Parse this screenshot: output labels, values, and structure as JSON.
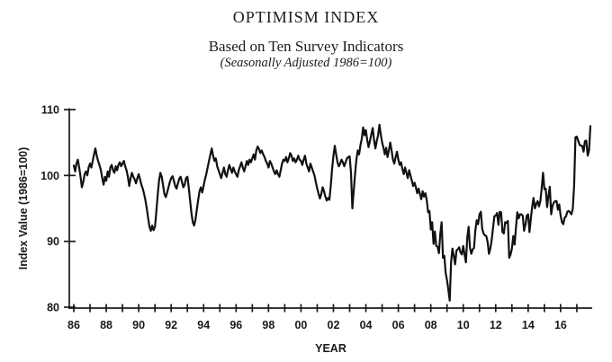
{
  "chart_data": {
    "type": "line",
    "title": "OPTIMISM INDEX",
    "subtitle": "Based on Ten Survey Indicators",
    "subtitle2": "(Seasonally Adjusted 1986=100)",
    "xlabel": "YEAR",
    "ylabel": "Index Value (1986=100)",
    "ylim": [
      80,
      110
    ],
    "y_ticks": [
      80,
      90,
      100,
      110
    ],
    "x_year_range": [
      1986,
      2017
    ],
    "x_tick_labels": [
      "86",
      "88",
      "90",
      "92",
      "94",
      "96",
      "98",
      "00",
      "02",
      "04",
      "06",
      "08",
      "10",
      "12",
      "14",
      "16"
    ],
    "grid": false,
    "legend_position": "none",
    "line_color": "#111111",
    "text_color": "#1a1a1a",
    "series": [
      {
        "start_year": 1986,
        "points_per_year": 12,
        "end_label": "Nov 2017",
        "values": [
          101.5,
          100.6,
          101.8,
          102.4,
          101.2,
          99.8,
          98.2,
          99.0,
          100.2,
          100.6,
          100.0,
          101.2,
          101.8,
          101.2,
          102.2,
          103.2,
          104.1,
          103.0,
          102.2,
          101.6,
          100.8,
          99.6,
          98.6,
          99.8,
          99.2,
          100.6,
          99.8,
          101.2,
          101.6,
          100.8,
          100.4,
          101.4,
          100.8,
          101.6,
          102.0,
          101.4,
          101.8,
          102.2,
          101.4,
          100.8,
          99.8,
          98.4,
          99.6,
          100.4,
          99.8,
          99.4,
          98.8,
          99.6,
          100.2,
          99.4,
          98.6,
          98.0,
          97.2,
          96.2,
          95.0,
          93.5,
          92.2,
          91.6,
          92.4,
          91.7,
          92.2,
          94.5,
          97.0,
          99.2,
          100.4,
          99.8,
          98.5,
          97.2,
          96.7,
          97.4,
          98.2,
          99.0,
          99.6,
          99.9,
          99.2,
          98.4,
          98.0,
          98.8,
          99.5,
          99.8,
          99.0,
          98.2,
          98.6,
          99.6,
          99.8,
          98.2,
          96.2,
          94.3,
          92.9,
          92.4,
          93.3,
          94.8,
          96.3,
          97.6,
          98.2,
          97.4,
          98.4,
          99.4,
          100.2,
          101.2,
          102.2,
          103.2,
          104.1,
          103.0,
          102.2,
          102.6,
          101.4,
          100.8,
          100.2,
          99.6,
          100.4,
          101.2,
          100.2,
          99.8,
          100.8,
          101.6,
          101.0,
          100.4,
          101.2,
          100.6,
          100.2,
          99.8,
          100.8,
          101.4,
          102.0,
          101.2,
          100.6,
          101.4,
          102.2,
          101.6,
          102.4,
          102.0,
          102.6,
          103.2,
          102.4,
          103.8,
          104.4,
          104.0,
          103.4,
          103.8,
          103.2,
          102.8,
          102.2,
          101.8,
          101.2,
          102.2,
          101.8,
          101.2,
          100.6,
          100.2,
          100.8,
          100.2,
          99.8,
          100.8,
          101.8,
          102.4,
          102.2,
          102.8,
          102.0,
          102.6,
          103.4,
          103.0,
          102.2,
          102.6,
          102.0,
          102.4,
          103.0,
          102.4,
          102.2,
          101.6,
          102.4,
          103.0,
          101.8,
          101.2,
          100.6,
          101.8,
          101.2,
          100.6,
          100.0,
          99.0,
          98.0,
          97.2,
          96.5,
          97.2,
          98.2,
          97.6,
          96.8,
          96.2,
          96.6,
          96.3,
          98.4,
          101.0,
          103.0,
          104.5,
          103.2,
          102.0,
          101.4,
          101.8,
          102.4,
          102.0,
          101.4,
          102.0,
          102.6,
          102.8,
          102.9,
          100.4,
          95.0,
          97.6,
          100.2,
          102.4,
          103.8,
          103.2,
          104.6,
          105.6,
          107.3,
          106.1,
          106.9,
          105.4,
          104.3,
          105.2,
          106.2,
          107.2,
          105.4,
          104.1,
          105.2,
          106.1,
          107.7,
          106.2,
          105.0,
          104.2,
          103.2,
          104.2,
          102.8,
          103.8,
          105.0,
          103.8,
          102.4,
          101.8,
          102.8,
          103.6,
          102.4,
          101.6,
          102.0,
          101.0,
          100.2,
          101.2,
          100.4,
          99.6,
          100.8,
          100.0,
          99.2,
          98.4,
          98.9,
          98.2,
          97.3,
          98.0,
          97.2,
          96.4,
          97.6,
          96.8,
          97.3,
          96.2,
          94.4,
          94.6,
          91.8,
          92.9,
          89.6,
          91.5,
          89.3,
          89.2,
          88.2,
          91.1,
          92.9,
          87.5,
          87.8,
          85.2,
          84.1,
          82.6,
          81.0,
          86.8,
          88.9,
          87.8,
          86.5,
          88.6,
          88.8,
          89.1,
          88.3,
          88.0,
          89.3,
          88.0,
          86.8,
          90.6,
          92.2,
          89.0,
          88.1,
          88.8,
          89.0,
          91.7,
          93.2,
          92.6,
          94.1,
          94.5,
          91.9,
          91.2,
          90.9,
          90.8,
          89.9,
          88.1,
          88.9,
          90.2,
          92.0,
          93.8,
          93.9,
          94.3,
          92.5,
          94.5,
          94.4,
          91.4,
          91.2,
          92.9,
          92.8,
          93.1,
          87.5,
          88.0,
          88.9,
          90.8,
          89.5,
          92.1,
          94.4,
          93.5,
          94.1,
          94.1,
          93.9,
          91.6,
          92.5,
          93.9,
          94.1,
          91.4,
          93.4,
          95.2,
          96.6,
          95.0,
          95.7,
          96.1,
          95.3,
          96.1,
          98.1,
          100.4,
          97.9,
          98.0,
          95.2,
          96.9,
          98.3,
          94.1,
          95.4,
          95.9,
          96.1,
          96.1,
          94.8,
          95.6,
          93.9,
          92.9,
          92.6,
          93.6,
          93.8,
          94.5,
          94.6,
          94.4,
          94.1,
          94.9,
          98.4,
          105.8,
          105.9,
          105.3,
          104.7,
          104.5,
          104.5,
          103.6,
          105.2,
          105.3,
          103.0,
          103.8,
          107.5
        ]
      }
    ]
  }
}
